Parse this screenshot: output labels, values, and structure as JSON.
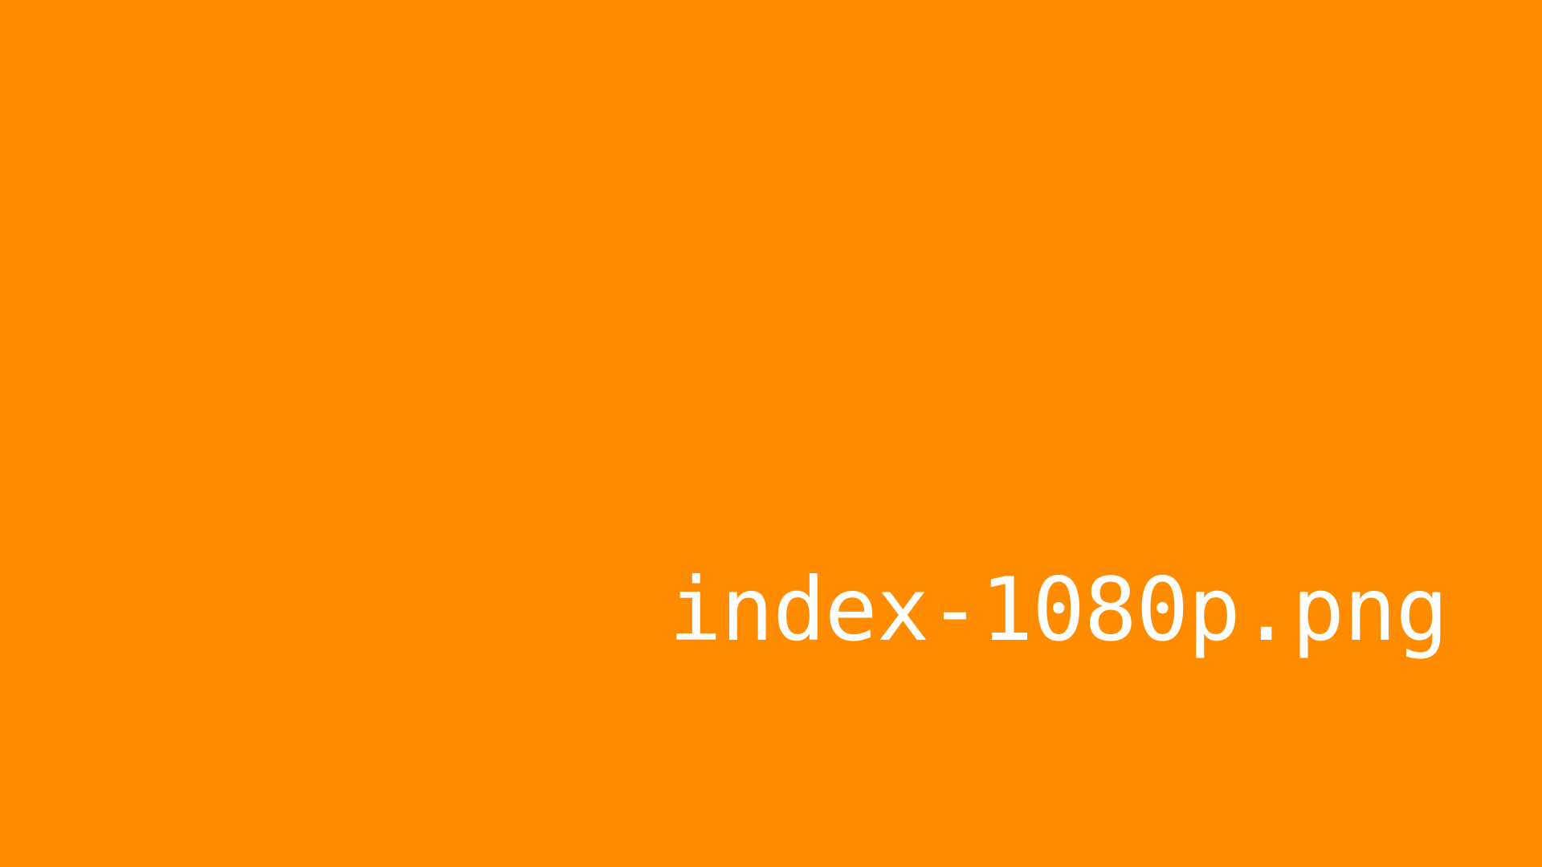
{
  "background_color": "#FF8C00",
  "text_color": "#FFFFFF",
  "filename": "index-1080p.png"
}
